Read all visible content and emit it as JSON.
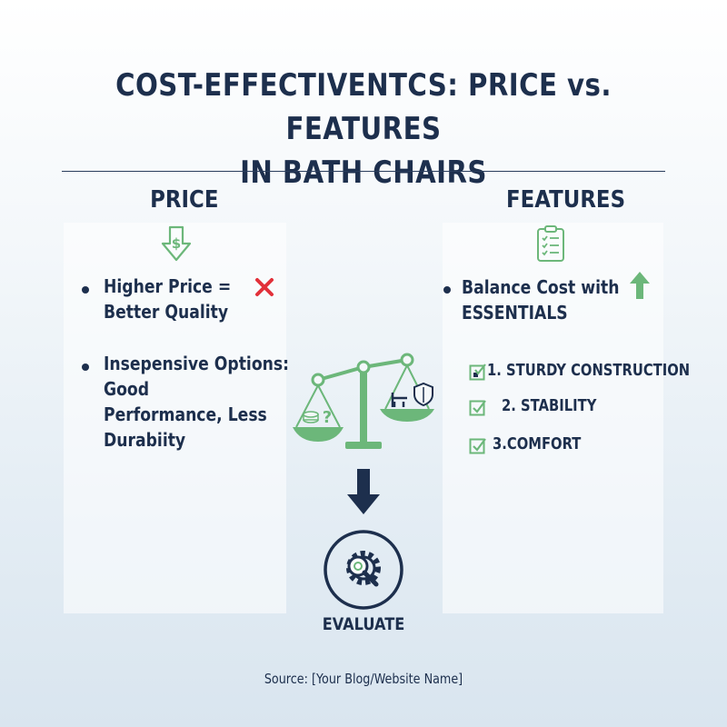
{
  "title": {
    "line1": "COST-EFFECTIVENTCS: PRICE vs. FEATURES",
    "line2": "IN BATH CHAIRS"
  },
  "price": {
    "heading": "PRICE",
    "bullets": [
      {
        "lines": [
          "Higher Price =",
          "Better Quality"
        ],
        "mark_icon": "red-x-icon"
      },
      {
        "lines": [
          "Insepensive Options:",
          "Good",
          "Performance, Less",
          "Durabiity"
        ]
      }
    ],
    "icon": "dollar-down-arrow-icon"
  },
  "features": {
    "heading": "FEATURES",
    "bullet": {
      "lines": [
        "Balance Cost with",
        "ESSENTIALS"
      ],
      "mark_icon": "green-up-arrow-icon"
    },
    "items": [
      "1. STURDY CONSTRUCTION",
      "2. STABILITY",
      "3.COMFORT"
    ],
    "icon": "clipboard-checklist-icon"
  },
  "center": {
    "scale_icon": "balance-scale-icon",
    "arrow_icon": "down-arrow-icon",
    "evaluate_icon": "gear-magnifier-icon",
    "evaluate_label": "EVALUATE"
  },
  "source": "Source: [Your Blog/Website Name]",
  "colors": {
    "navy": "#1d2f4d",
    "green": "#6cb77a",
    "red": "#e2313a"
  }
}
